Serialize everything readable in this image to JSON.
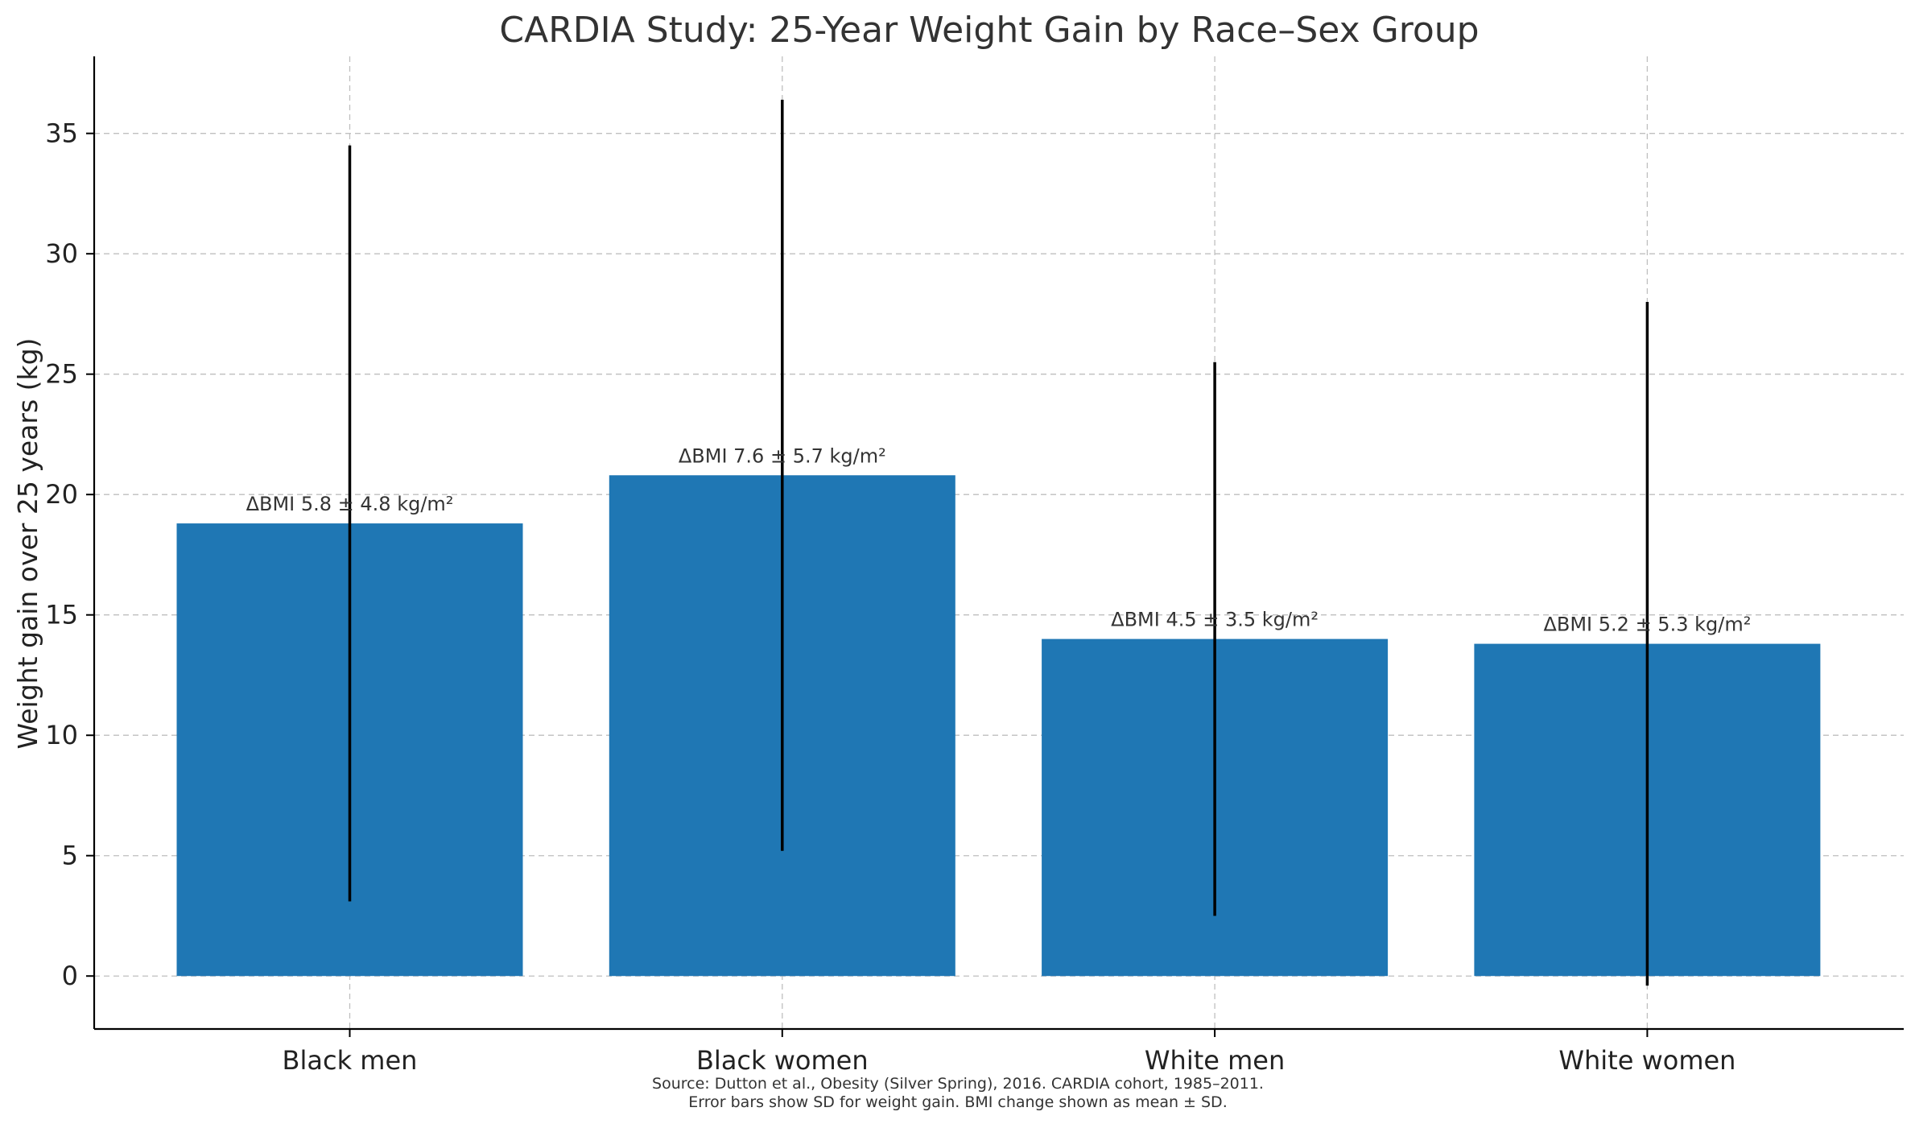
{
  "chart_data": {
    "type": "bar",
    "title": "CARDIA Study: 25-Year Weight Gain by Race–Sex Group",
    "xlabel": "",
    "ylabel": "Weight gain over 25 years (kg)",
    "categories": [
      "Black men",
      "Black women",
      "White men",
      "White women"
    ],
    "values": [
      18.8,
      20.8,
      14.0,
      13.8
    ],
    "error_sd": [
      15.7,
      15.6,
      11.5,
      14.2
    ],
    "annotations": [
      "ΔBMI 5.8 ± 4.8 kg/m²",
      "ΔBMI 7.6 ± 5.7 kg/m²",
      "ΔBMI 4.5 ± 3.5 kg/m²",
      "ΔBMI 5.2 ± 5.3 kg/m²"
    ],
    "ylim": [
      -2.2,
      38.2
    ],
    "yticks": [
      "0",
      "5",
      "10",
      "15",
      "20",
      "25",
      "30",
      "35"
    ],
    "grid": true,
    "bar_color": "#1f77b4",
    "errorbar_color": "#000000",
    "source_line1": "Source: Dutton et al., Obesity (Silver Spring), 2016. CARDIA cohort, 1985–2011.",
    "source_line2": "Error bars show SD for weight gain. BMI change shown as mean ± SD."
  }
}
